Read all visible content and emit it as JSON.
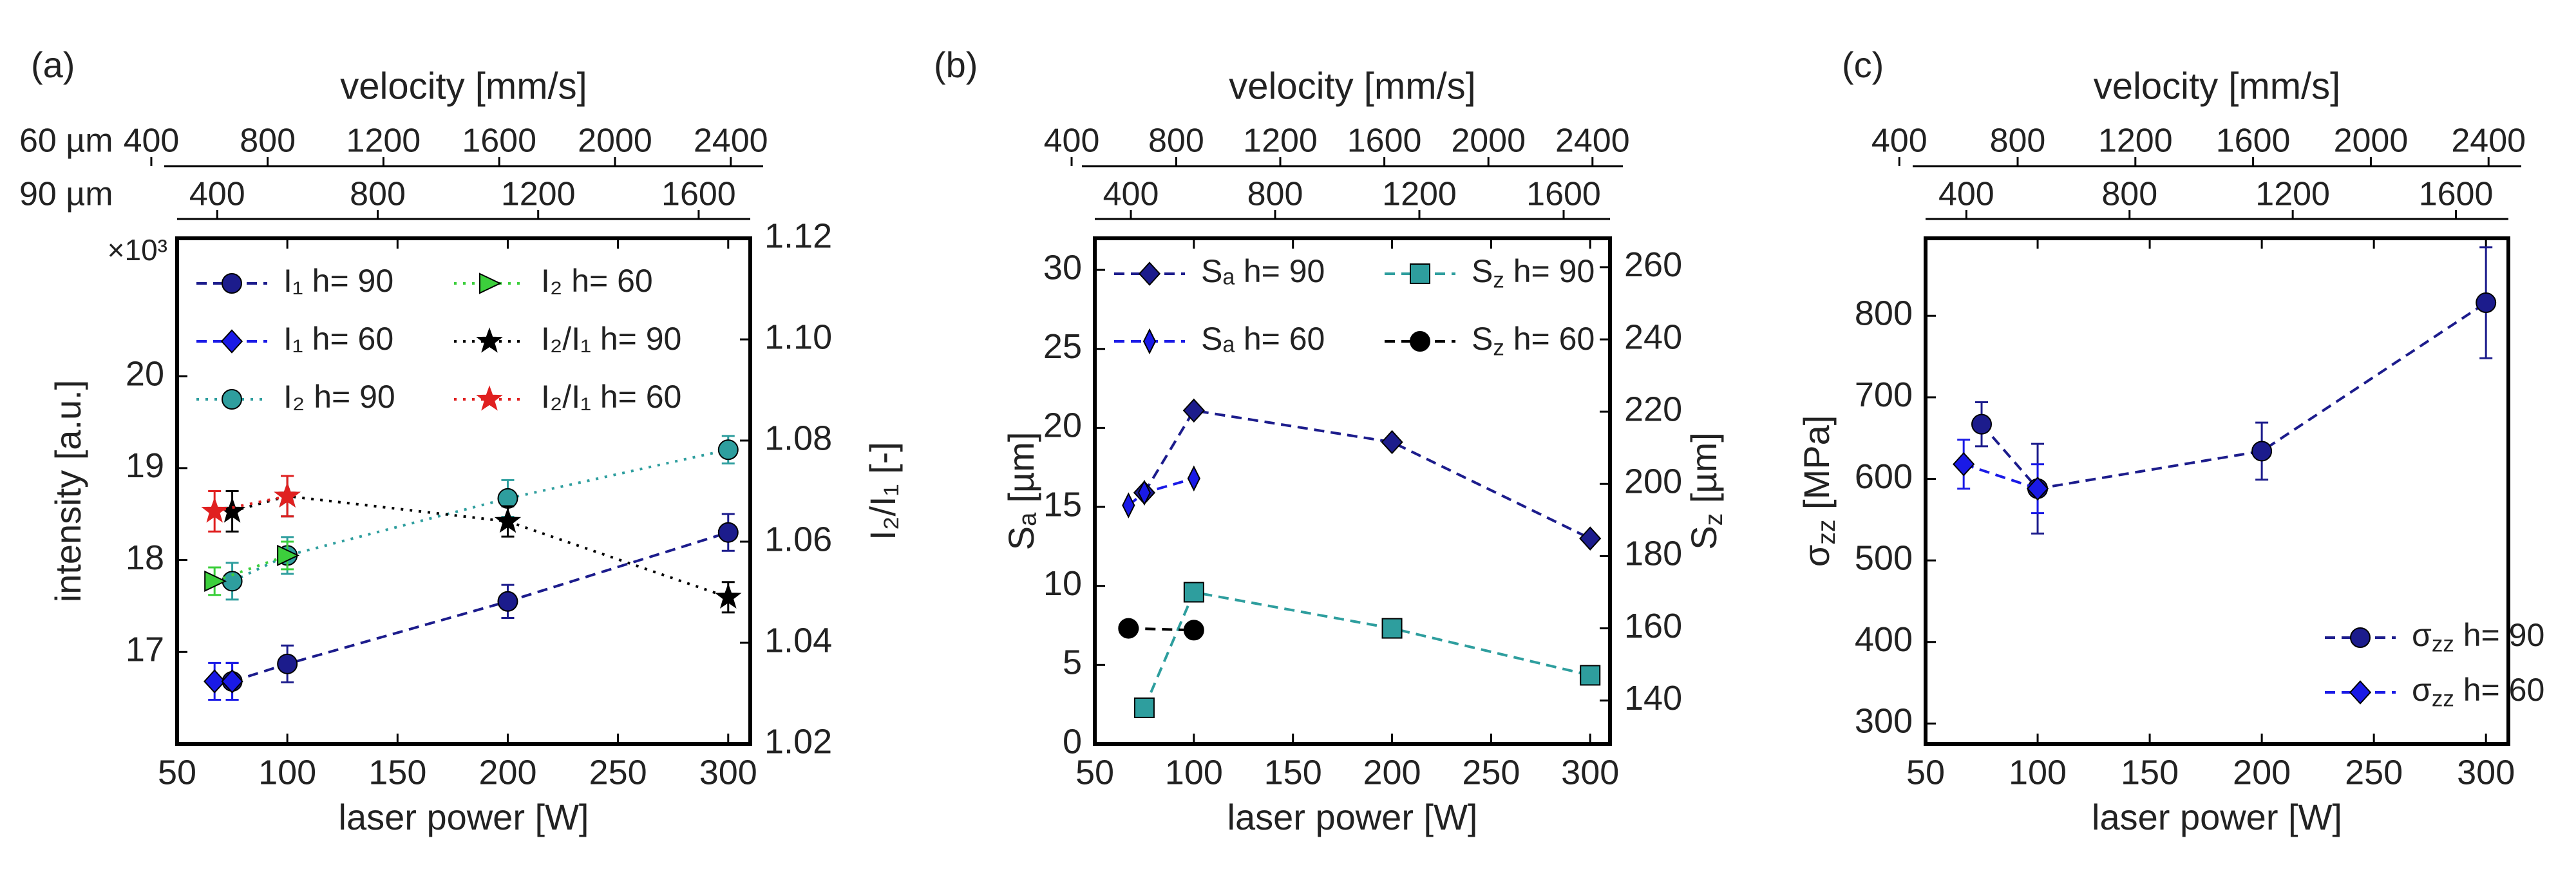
{
  "colors": {
    "navy": "#1c1c8c",
    "blue": "#1a1ae6",
    "teal": "#2e9e9e",
    "green": "#3ccf3c",
    "red": "#e02020",
    "black": "#000000",
    "axis": "#000000",
    "text": "#222222"
  },
  "chart_data": [
    {
      "type": "scatter",
      "panel_label": "(a)",
      "title": "",
      "xlabel": "laser power [W]",
      "ylabel": "intensity [a.u.]",
      "ylabel_right": "I₂/I₁ [-]",
      "top_axis_label": "velocity [mm/s]",
      "top_axis_60_label": "60 µm",
      "top_axis_90_label": "90 µm",
      "x_ticks": [
        50,
        100,
        150,
        200,
        250,
        300
      ],
      "xlim": [
        50,
        310
      ],
      "ylim": [
        16.0,
        21.5
      ],
      "y_ticks": [
        17,
        18,
        19,
        20
      ],
      "y_exponent": "×10³",
      "ylim_right": [
        1.02,
        1.12
      ],
      "y_ticks_right": [
        "1.02",
        "1.04",
        "1.06",
        "1.08",
        "1.10",
        "1.12"
      ],
      "velocity_60_ticks": [
        "400",
        "800",
        "1200",
        "1600",
        "2000",
        "2400"
      ],
      "velocity_90_ticks": [
        "400",
        "800",
        "1200",
        "1600"
      ],
      "series": [
        {
          "name": "I₁ h= 90",
          "axis": "left",
          "color": "navy",
          "marker": "circle",
          "line": "dashed",
          "points": [
            [
              75,
              16.68,
              0.2
            ],
            [
              100,
              16.87,
              0.2
            ],
            [
              200,
              17.55,
              0.18
            ],
            [
              300,
              18.3,
              0.2
            ]
          ]
        },
        {
          "name": "I₁ h= 60",
          "axis": "left",
          "color": "blue",
          "marker": "diamond",
          "line": "dashed",
          "points": [
            [
              67,
              16.68,
              0.2
            ],
            [
              75,
              16.68,
              0.2
            ]
          ]
        },
        {
          "name": "I₂ h= 90",
          "axis": "left",
          "color": "teal",
          "marker": "circle",
          "line": "dotted",
          "points": [
            [
              75,
              17.77,
              0.2
            ],
            [
              100,
              18.05,
              0.2
            ],
            [
              200,
              18.67,
              0.2
            ],
            [
              300,
              19.2,
              0.15
            ]
          ]
        },
        {
          "name": "I₂ h= 60",
          "axis": "left",
          "color": "green",
          "marker": "triangle-right",
          "line": "dotted",
          "points": [
            [
              67,
              17.77,
              0.15
            ],
            [
              100,
              18.05,
              0.15
            ]
          ]
        },
        {
          "name": "I₂/I₁ h= 90",
          "axis": "right",
          "color": "black",
          "marker": "star",
          "line": "dotted",
          "points": [
            [
              75,
              1.066,
              0.004
            ],
            [
              100,
              1.069,
              0.004
            ],
            [
              200,
              1.064,
              0.003
            ],
            [
              300,
              1.049,
              0.003
            ]
          ]
        },
        {
          "name": "I₂/I₁ h= 60",
          "axis": "right",
          "color": "red",
          "marker": "star",
          "line": "dotted",
          "points": [
            [
              67,
              1.066,
              0.004
            ],
            [
              100,
              1.069,
              0.004
            ]
          ]
        }
      ]
    },
    {
      "type": "scatter",
      "panel_label": "(b)",
      "title": "",
      "xlabel": "laser power [W]",
      "ylabel": "Sₐ [µm]",
      "ylabel_right": "S_z [µm]",
      "top_axis_label": "velocity [mm/s]",
      "x_ticks": [
        50,
        100,
        150,
        200,
        250,
        300
      ],
      "xlim": [
        50,
        310
      ],
      "ylim": [
        0,
        32
      ],
      "y_ticks": [
        0,
        5,
        10,
        15,
        20,
        25,
        30
      ],
      "ylim_right": [
        128,
        268
      ],
      "y_ticks_right": [
        140,
        160,
        180,
        200,
        220,
        240,
        260
      ],
      "velocity_60_ticks": [
        "400",
        "800",
        "1200",
        "1600",
        "2000",
        "2400"
      ],
      "velocity_90_ticks": [
        "400",
        "800",
        "1200",
        "1600"
      ],
      "series": [
        {
          "name": "Sₐ h= 90",
          "axis": "left",
          "color": "navy",
          "marker": "diamond",
          "line": "dashed",
          "points": [
            [
              75,
              15.9,
              0
            ],
            [
              100,
              21.1,
              0
            ],
            [
              200,
              19.1,
              0
            ],
            [
              300,
              13.0,
              0
            ]
          ]
        },
        {
          "name": "Sₐ h= 60",
          "axis": "left",
          "color": "blue",
          "marker": "thin-diamond",
          "line": "dashed",
          "points": [
            [
              67,
              15.1,
              0
            ],
            [
              75,
              15.9,
              0
            ],
            [
              100,
              16.8,
              0
            ]
          ]
        },
        {
          "name": "S_z h= 90",
          "axis": "right",
          "color": "teal",
          "marker": "square",
          "line": "dashed",
          "points": [
            [
              75,
              138,
              0
            ],
            [
              100,
              170,
              0
            ],
            [
              200,
              160,
              0
            ],
            [
              300,
              147,
              0
            ]
          ]
        },
        {
          "name": "S_z h= 60",
          "axis": "right",
          "color": "black",
          "marker": "circle",
          "line": "dashed",
          "points": [
            [
              67,
              160,
              0
            ],
            [
              100,
              159.5,
              0
            ]
          ]
        }
      ]
    },
    {
      "type": "scatter",
      "panel_label": "(c)",
      "title": "",
      "xlabel": "laser power [W]",
      "ylabel": "σ_zz [MPa]",
      "top_axis_label": "velocity [mm/s]",
      "x_ticks": [
        50,
        100,
        150,
        200,
        250,
        300
      ],
      "xlim": [
        50,
        310
      ],
      "ylim": [
        275,
        895
      ],
      "y_ticks": [
        300,
        400,
        500,
        600,
        700,
        800
      ],
      "velocity_60_ticks": [
        "400",
        "800",
        "1200",
        "1600",
        "2000",
        "2400"
      ],
      "velocity_90_ticks": [
        "400",
        "800",
        "1200",
        "1600"
      ],
      "series": [
        {
          "name": "σ_zz h= 90",
          "axis": "left",
          "color": "navy",
          "marker": "circle",
          "line": "dashed",
          "points": [
            [
              75,
              667,
              27
            ],
            [
              100,
              588,
              55
            ],
            [
              200,
              634,
              35
            ],
            [
              300,
              816,
              68
            ]
          ]
        },
        {
          "name": "σ_zz h= 60",
          "axis": "left",
          "color": "blue",
          "marker": "diamond",
          "line": "dashed",
          "points": [
            [
              67,
              618,
              30
            ],
            [
              100,
              588,
              30
            ]
          ]
        }
      ]
    }
  ]
}
